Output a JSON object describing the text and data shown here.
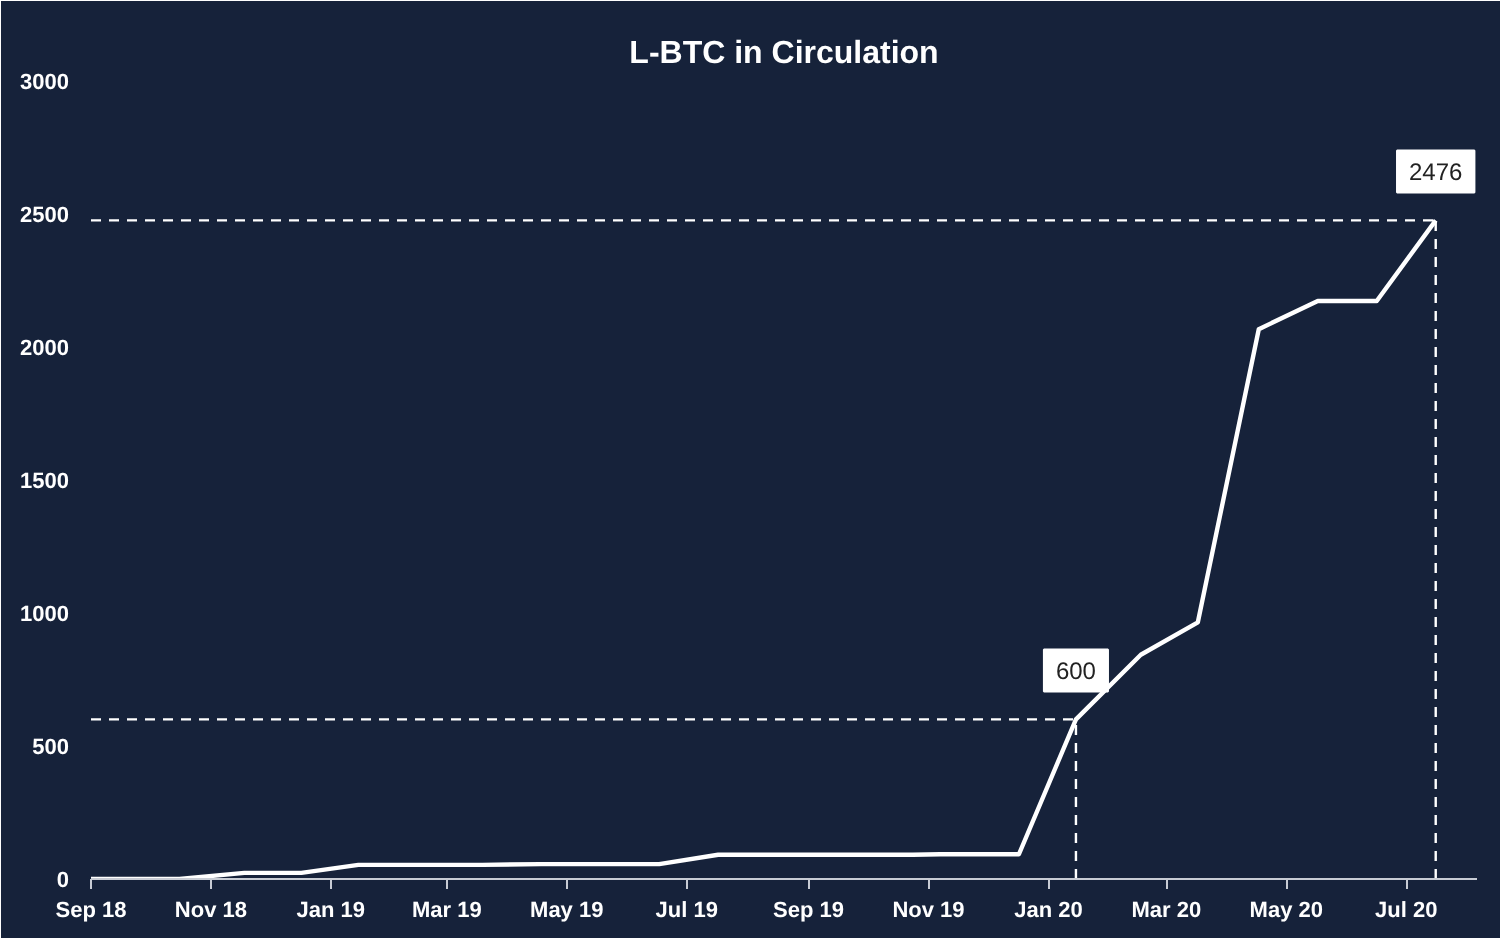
{
  "chart_data": {
    "type": "line",
    "title": "L-BTC in Circulation",
    "x": [
      "2018-09-01",
      "2018-10-16",
      "2018-11-18",
      "2018-12-17",
      "2019-01-15",
      "2019-03-19",
      "2019-04-18",
      "2019-06-17",
      "2019-07-17",
      "2019-10-24",
      "2019-11-07",
      "2019-12-17",
      "2020-01-15",
      "2020-02-17",
      "2020-03-17",
      "2020-04-17",
      "2020-05-17",
      "2020-06-16",
      "2020-07-16"
    ],
    "series": [
      {
        "color": "#ffffff",
        "values": [
          0,
          0,
          23,
          23,
          53,
          53,
          56,
          56,
          91,
          91,
          93,
          93,
          600,
          843,
          965,
          2067,
          2173,
          2173,
          2476
        ]
      }
    ],
    "annotations": [
      {
        "text": "600",
        "x": "2020-01-15",
        "y": 600
      },
      {
        "text": "2476",
        "x": "2020-07-16",
        "y": 2476
      }
    ],
    "xlim": [
      "2018-09-01",
      "2020-08-06"
    ],
    "xticks": [
      {
        "value": "2018-09-01",
        "label": "Sep 18"
      },
      {
        "value": "2018-11-01",
        "label": "Nov 18"
      },
      {
        "value": "2019-01-01",
        "label": "Jan 19"
      },
      {
        "value": "2019-03-01",
        "label": "Mar 19"
      },
      {
        "value": "2019-05-01",
        "label": "May 19"
      },
      {
        "value": "2019-07-01",
        "label": "Jul 19"
      },
      {
        "value": "2019-09-01",
        "label": "Sep 19"
      },
      {
        "value": "2019-11-01",
        "label": "Nov 19"
      },
      {
        "value": "2020-01-01",
        "label": "Jan 20"
      },
      {
        "value": "2020-03-01",
        "label": "Mar 20"
      },
      {
        "value": "2020-05-01",
        "label": "May 20"
      },
      {
        "value": "2020-07-01",
        "label": "Jul 20"
      }
    ],
    "ylim": [
      0,
      3000
    ],
    "yticks": [
      0,
      500,
      1000,
      1500,
      2000,
      2500,
      3000
    ],
    "ref_lines": [
      {
        "axis": "y",
        "value": 600,
        "line_style": "dashed"
      },
      {
        "axis": "x",
        "value": "2020-01-15",
        "line_style": "dashed"
      },
      {
        "axis": "y",
        "value": 2476,
        "line_style": "dashed"
      },
      {
        "axis": "x",
        "value": "2020-07-16",
        "line_style": "dashed"
      }
    ],
    "grid": false,
    "marker": "none",
    "line_style": "solid"
  }
}
